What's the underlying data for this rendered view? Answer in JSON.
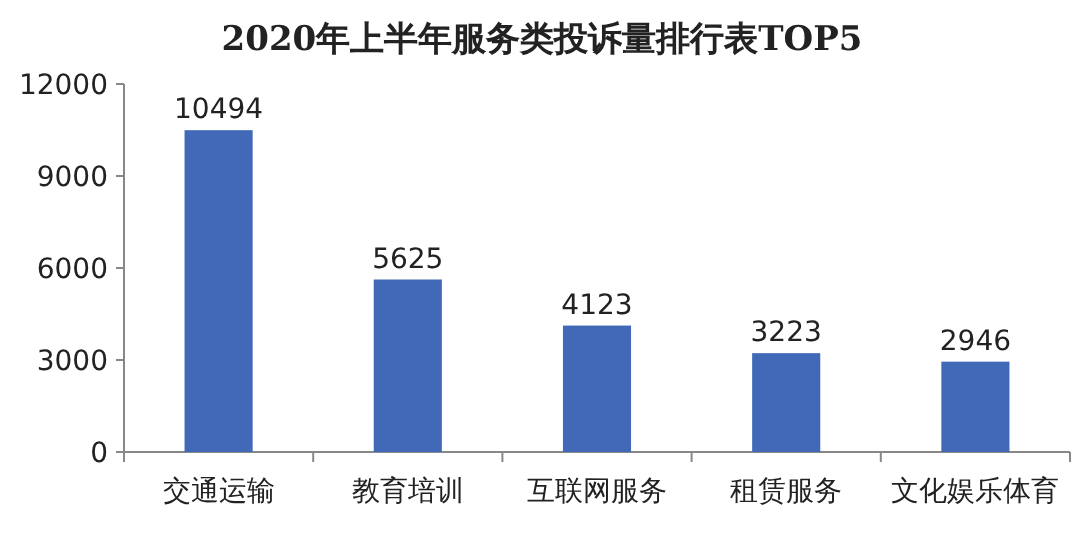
{
  "chart_data": {
    "type": "bar",
    "title": "2020年上半年服务类投诉量排行表TOP5",
    "categories": [
      "交通运输",
      "教育培训",
      "互联网服务",
      "租赁服务",
      "文化娱乐体育"
    ],
    "values": [
      10494,
      5625,
      4123,
      3223,
      2946
    ],
    "color": "#4169b8",
    "ylim": [
      0,
      12000
    ],
    "yticks": [
      0,
      3000,
      6000,
      9000,
      12000
    ],
    "data_labels": true
  }
}
